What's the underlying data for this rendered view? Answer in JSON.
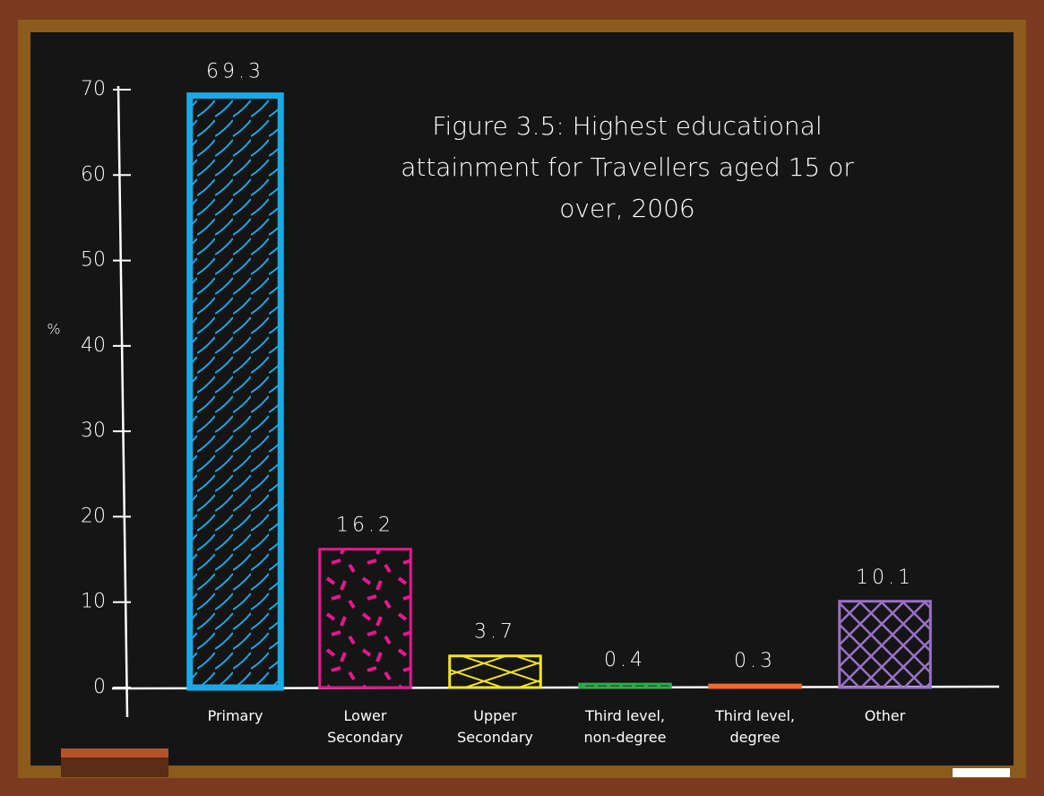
{
  "chart_data": {
    "type": "bar",
    "title": "Figure 3.5: Highest educational attainment for Travellers aged 15 or over, 2006",
    "y_label": "%",
    "categories": [
      "Primary",
      "Lower Secondary",
      "Upper Secondary",
      "Third level, non-degree",
      "Third level, degree",
      "Other"
    ],
    "values": [
      69.3,
      16.2,
      3.7,
      0.4,
      0.3,
      10.1
    ],
    "colors": [
      "#1ba9e6",
      "#e6178f",
      "#f3e61c",
      "#2cae4a",
      "#f2692a",
      "#9b70c9"
    ],
    "ylim": [
      0,
      70
    ],
    "yticks": [
      0,
      10,
      20,
      30,
      40,
      50,
      60,
      70
    ],
    "grid": false
  }
}
